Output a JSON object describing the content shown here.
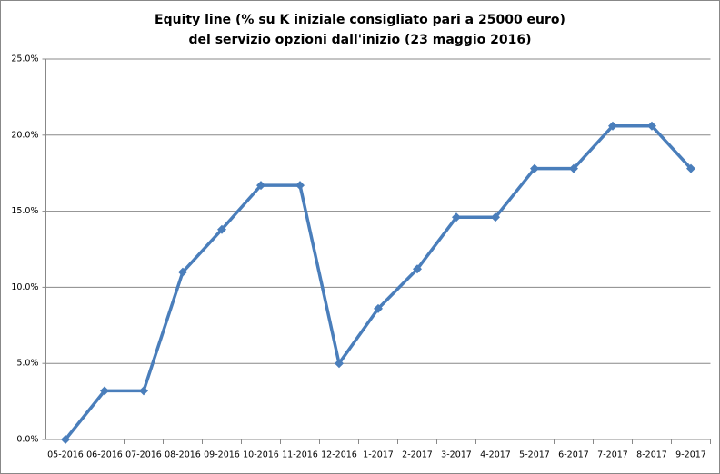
{
  "chart_data": {
    "type": "line",
    "title": [
      "Equity line (% su K iniziale  consigliato  pari a 25000 euro)",
      "del servizio opzioni dall'inizio  (23 maggio 2016)"
    ],
    "categories": [
      "05-2016",
      "06-2016",
      "07-2016",
      "08-2016",
      "09-2016",
      "10-2016",
      "11-2016",
      "12-2016",
      "1-2017",
      "2-2017",
      "3-2017",
      "4-2017",
      "5-2017",
      "6-2017",
      "7-2017",
      "8-2017",
      "9-2017"
    ],
    "series": [
      {
        "name": "Equity line",
        "color": "#4a7ebb",
        "values": [
          0,
          3.2,
          3.2,
          11.0,
          13.8,
          16.7,
          16.7,
          5.0,
          8.6,
          11.2,
          14.6,
          14.6,
          17.8,
          17.8,
          20.6,
          20.6,
          17.8
        ]
      }
    ],
    "ylim": [
      0,
      25
    ],
    "yticks": [
      {
        "value": 0,
        "label": "0.0%"
      },
      {
        "value": 5,
        "label": "5.0%"
      },
      {
        "value": 10,
        "label": "10.0%"
      },
      {
        "value": 15,
        "label": "15.0%"
      },
      {
        "value": 20,
        "label": "20.0%"
      },
      {
        "value": 25,
        "label": "25.0%"
      }
    ],
    "grid": true
  }
}
